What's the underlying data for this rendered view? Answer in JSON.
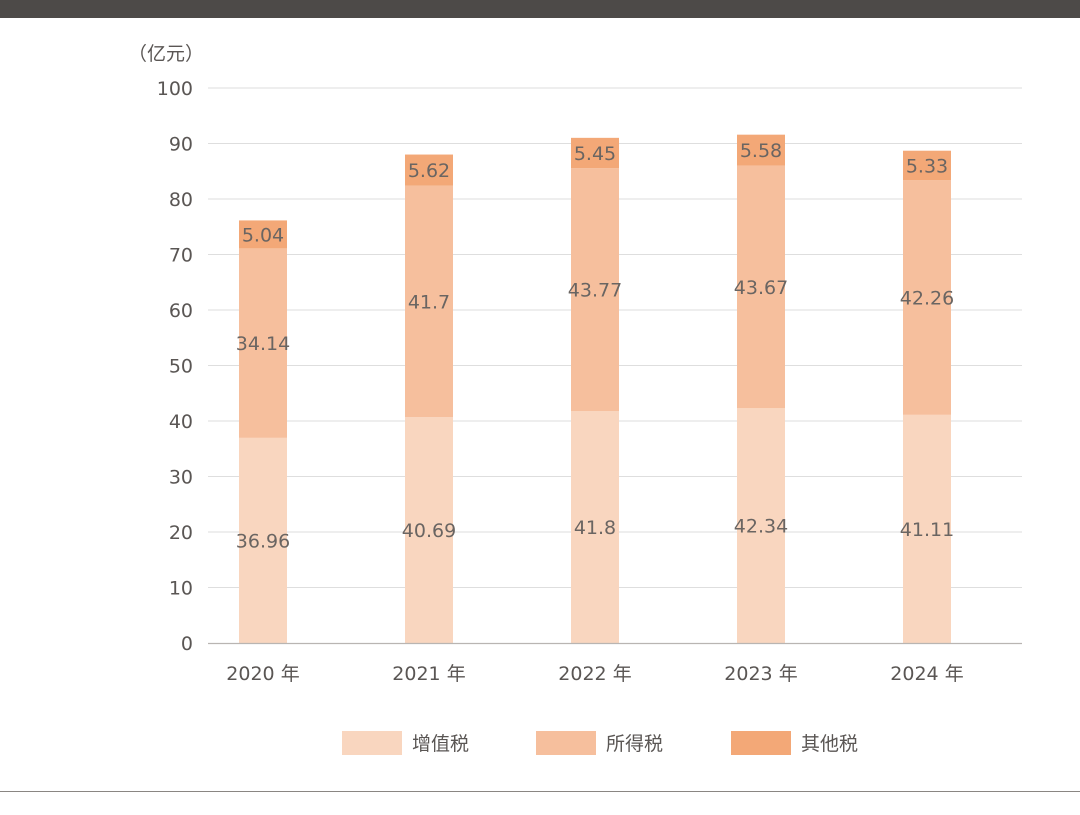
{
  "chart_data": {
    "type": "bar",
    "stacked": true,
    "y_unit": "（亿元）",
    "categories": [
      "2020 年",
      "2021 年",
      "2022 年",
      "2023 年",
      "2024 年"
    ],
    "series": [
      {
        "name": "增值税",
        "values": [
          36.96,
          40.69,
          41.8,
          42.34,
          41.11
        ],
        "color": "#f9d6bf"
      },
      {
        "name": "所得税",
        "values": [
          34.14,
          41.7,
          43.77,
          43.67,
          42.26
        ],
        "color": "#f6bf9d"
      },
      {
        "name": "其他税",
        "values": [
          5.04,
          5.62,
          5.45,
          5.58,
          5.33
        ],
        "color": "#f3a877"
      }
    ],
    "yticks": [
      "0",
      "10",
      "20",
      "30",
      "40",
      "50",
      "60",
      "70",
      "80",
      "90",
      "100"
    ],
    "ylim": [
      0,
      100
    ],
    "grid": true,
    "legend_position": "bottom-center"
  },
  "colors": {
    "top_bar": "#4d4a48",
    "axis_text": "#5a5654",
    "value_text": "#6a6562",
    "gridline": "#dedede",
    "axis_line": "#b9b5b2"
  }
}
